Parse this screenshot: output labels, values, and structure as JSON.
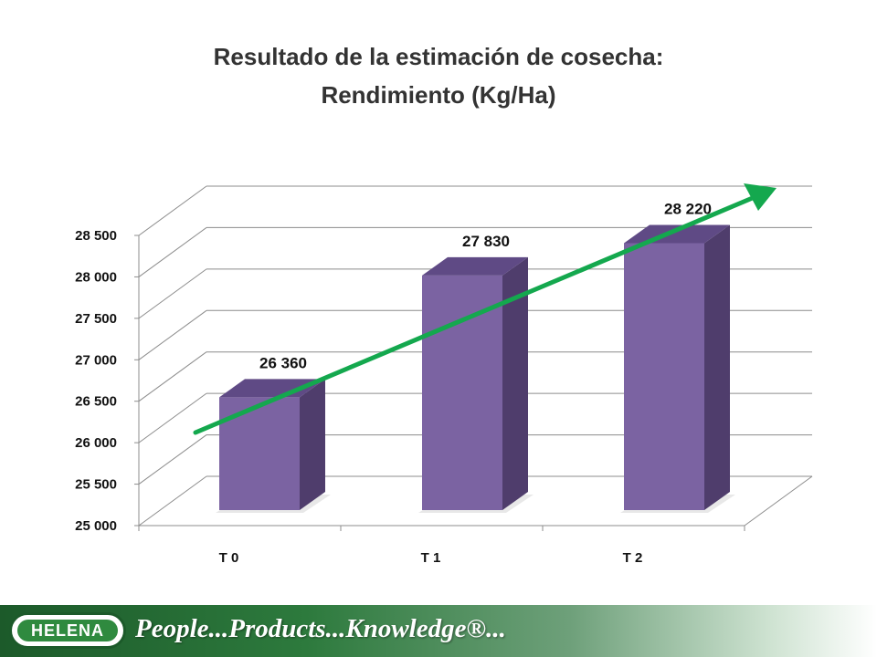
{
  "title_line1": "Resultado de la estimación de cosecha:",
  "title_line2": "Rendimiento (Kg/Ha)",
  "chart_data": {
    "type": "bar",
    "title": "Resultado de la estimación de cosecha: Rendimiento (Kg/Ha)",
    "categories": [
      "T 0",
      "T 1",
      "T 2"
    ],
    "values": [
      26360,
      27830,
      28220
    ],
    "value_labels": [
      "26 360",
      "27 830",
      "28 220"
    ],
    "y_ticks": [
      25000,
      25500,
      26000,
      26500,
      27000,
      27500,
      28000,
      28500
    ],
    "y_tick_labels": [
      "25 000",
      "25 500",
      "26 000",
      "26 500",
      "27 000",
      "27 500",
      "28 000",
      "28 500"
    ],
    "ylim": [
      25000,
      28500
    ],
    "grid": true,
    "three_d": true,
    "trend_arrow": true,
    "colors": {
      "bar_front": "#7b63a2",
      "bar_top": "#5f4a85",
      "bar_side": "#4f3d6c",
      "arrow": "#14a84e",
      "grid": "#8c8c8c"
    }
  },
  "footer": {
    "logo_text": "HELENA",
    "tagline": "People...Products...Knowledge®..."
  }
}
